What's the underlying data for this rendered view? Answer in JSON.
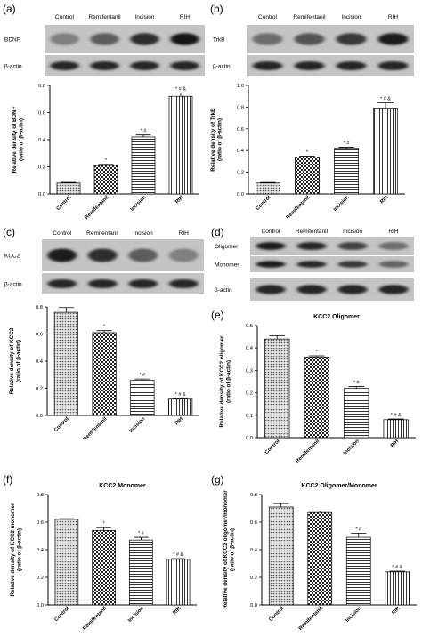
{
  "panels": {
    "a": {
      "label": "(a)",
      "blot": {
        "lanes": [
          "Control",
          "Remifentanil",
          "Incision",
          "RIH"
        ],
        "rows": [
          {
            "label": "BDNF",
            "band_intensity": [
              0.35,
              0.55,
              0.8,
              0.95
            ]
          },
          {
            "label": "β-actin",
            "band_intensity": [
              0.85,
              0.85,
              0.85,
              0.85
            ]
          }
        ]
      }
    },
    "b": {
      "label": "(b)",
      "blot": {
        "lanes": [
          "Control",
          "Remifentanil",
          "Incision",
          "RIH"
        ],
        "rows": [
          {
            "label": "TrkB",
            "band_intensity": [
              0.45,
              0.6,
              0.75,
              0.9
            ]
          },
          {
            "label": "β-actin",
            "band_intensity": [
              0.85,
              0.85,
              0.85,
              0.85
            ]
          }
        ]
      }
    },
    "c": {
      "label": "(c)",
      "blot": {
        "lanes": [
          "Control",
          "Remifentanil",
          "Incision",
          "RIH"
        ],
        "rows": [
          {
            "label": "KCC2",
            "band_intensity": [
              0.9,
              0.8,
              0.55,
              0.35
            ]
          },
          {
            "label": "β-actin",
            "band_intensity": [
              0.85,
              0.85,
              0.85,
              0.85
            ]
          }
        ]
      }
    },
    "d": {
      "label": "(d)",
      "blot": {
        "lanes": [
          "Control",
          "Remifentanil",
          "Incision",
          "RIH"
        ],
        "rows": [
          {
            "label": "Oligomer",
            "band_intensity": [
              0.9,
              0.85,
              0.7,
              0.45
            ]
          },
          {
            "label": "Monomer",
            "band_intensity": [
              0.9,
              0.85,
              0.75,
              0.5
            ]
          },
          {
            "label": "β-actin",
            "band_intensity": [
              0.85,
              0.85,
              0.85,
              0.85
            ]
          }
        ]
      }
    },
    "e": {
      "label": "(e)"
    },
    "f": {
      "label": "(f)"
    },
    "g": {
      "label": "(g)"
    }
  },
  "chart_data": [
    {
      "panel": "a",
      "type": "bar",
      "title": "",
      "ylabel": "Relative density of BDNF (ratio of β-actin)",
      "categories": [
        "Control",
        "Remifentanil",
        "Incision",
        "RIH"
      ],
      "values": [
        0.08,
        0.21,
        0.42,
        0.72
      ],
      "errors": [
        0.005,
        0.008,
        0.015,
        0.025
      ],
      "annotations": [
        "",
        "*",
        "* #",
        "* # &"
      ],
      "patterns": [
        "dots",
        "checker",
        "hlines",
        "vlines"
      ],
      "ylim": [
        0,
        0.8
      ],
      "yticks": [
        0.0,
        0.2,
        0.4,
        0.6,
        0.8
      ]
    },
    {
      "panel": "b",
      "type": "bar",
      "title": "",
      "ylabel": "Relative density of TrkB (ratio of β-actin)",
      "categories": [
        "Control",
        "Remifentanil",
        "Incision",
        "RIH"
      ],
      "values": [
        0.1,
        0.34,
        0.42,
        0.79
      ],
      "errors": [
        0.005,
        0.008,
        0.01,
        0.05
      ],
      "annotations": [
        "",
        "*",
        "* #",
        "* # &"
      ],
      "patterns": [
        "dots",
        "checker",
        "hlines",
        "vlines"
      ],
      "ylim": [
        0,
        1.0
      ],
      "yticks": [
        0.0,
        0.2,
        0.4,
        0.6,
        0.8,
        1.0
      ]
    },
    {
      "panel": "c",
      "type": "bar",
      "title": "",
      "ylabel": "Relative density of KCC2 (ratio of β-actin)",
      "categories": [
        "Control",
        "Remifentanil",
        "Incision",
        "RIH"
      ],
      "values": [
        0.76,
        0.61,
        0.26,
        0.12
      ],
      "errors": [
        0.035,
        0.015,
        0.008,
        0.005
      ],
      "annotations": [
        "",
        "*",
        "* #",
        "* # &"
      ],
      "patterns": [
        "dots",
        "checker",
        "hlines",
        "vlines"
      ],
      "ylim": [
        0,
        0.8
      ],
      "yticks": [
        0.0,
        0.2,
        0.4,
        0.6,
        0.8
      ]
    },
    {
      "panel": "e",
      "type": "bar",
      "title": "KCC2 Oligomer",
      "ylabel": "Relative density of KCC2 oligomer (ratio of β-actin)",
      "categories": [
        "Control",
        "Remifentanil",
        "Incision",
        "RIH"
      ],
      "values": [
        0.44,
        0.36,
        0.22,
        0.08
      ],
      "errors": [
        0.015,
        0.005,
        0.008,
        0.003
      ],
      "annotations": [
        "",
        "*",
        "* #",
        "* # &"
      ],
      "patterns": [
        "dots",
        "checker",
        "hlines",
        "vlines"
      ],
      "ylim": [
        0,
        0.5
      ],
      "yticks": [
        0.0,
        0.1,
        0.2,
        0.3,
        0.4,
        0.5
      ]
    },
    {
      "panel": "f",
      "type": "bar",
      "title": "KCC2 Monomer",
      "ylabel": "Relative density of KCC2 monomer (ratio of β-actin)",
      "categories": [
        "Control",
        "Remifentanil",
        "Incision",
        "RIH"
      ],
      "values": [
        0.62,
        0.54,
        0.47,
        0.33
      ],
      "errors": [
        0.005,
        0.02,
        0.02,
        0.005
      ],
      "annotations": [
        "",
        "*",
        "* #",
        "* # &"
      ],
      "patterns": [
        "dots",
        "checker",
        "hlines",
        "vlines"
      ],
      "ylim": [
        0,
        0.8
      ],
      "yticks": [
        0.0,
        0.2,
        0.4,
        0.6,
        0.8
      ]
    },
    {
      "panel": "g",
      "type": "bar",
      "title": "KCC2 Oligomer/Monomer",
      "ylabel": "Relative density of KCC2 oligomer/monomer (ratio of β-actin)",
      "categories": [
        "Control",
        "Remifentanil",
        "Incision",
        "RIH"
      ],
      "values": [
        0.71,
        0.67,
        0.49,
        0.24
      ],
      "errors": [
        0.025,
        0.01,
        0.03,
        0.005
      ],
      "annotations": [
        "",
        "",
        "* #",
        "* # &"
      ],
      "patterns": [
        "dots",
        "checker",
        "hlines",
        "vlines"
      ],
      "ylim": [
        0,
        0.8
      ],
      "yticks": [
        0.0,
        0.2,
        0.4,
        0.6,
        0.8
      ]
    }
  ]
}
